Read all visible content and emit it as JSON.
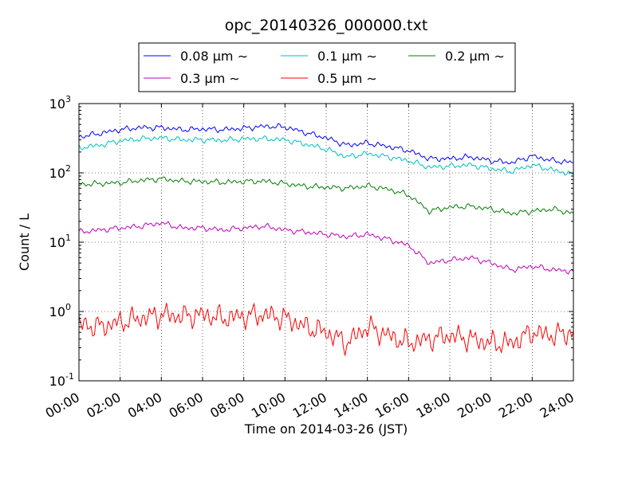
{
  "chart_data": {
    "type": "line",
    "title": "opc_20140326_000000.txt",
    "xlabel": "Time on 2014-03-26 (JST)",
    "ylabel": "Count / L",
    "yscale": "log",
    "ylim": [
      0.1,
      1000
    ],
    "xlim": [
      "00:00",
      "24:00"
    ],
    "x_tick_labels": [
      "00:00",
      "02:00",
      "04:00",
      "06:00",
      "08:00",
      "10:00",
      "12:00",
      "14:00",
      "16:00",
      "18:00",
      "20:00",
      "22:00",
      "24:00"
    ],
    "y_tick_labels": [
      {
        "base": "10",
        "exp": "-1"
      },
      {
        "base": "10",
        "exp": "0"
      },
      {
        "base": "10",
        "exp": "1"
      },
      {
        "base": "10",
        "exp": "2"
      },
      {
        "base": "10",
        "exp": "3"
      }
    ],
    "grid": true,
    "legend_position": "top-center",
    "x": [
      "00:00",
      "01:00",
      "02:00",
      "03:00",
      "04:00",
      "05:00",
      "06:00",
      "07:00",
      "08:00",
      "09:00",
      "10:00",
      "11:00",
      "12:00",
      "13:00",
      "14:00",
      "15:00",
      "16:00",
      "17:00",
      "18:00",
      "19:00",
      "20:00",
      "21:00",
      "22:00",
      "23:00",
      "24:00"
    ],
    "series": [
      {
        "name": "0.08 μm ∼",
        "color": "#0000ff",
        "values": [
          330,
          370,
          420,
          450,
          450,
          420,
          430,
          420,
          440,
          470,
          460,
          380,
          320,
          250,
          270,
          240,
          210,
          160,
          160,
          170,
          150,
          140,
          175,
          150,
          140
        ]
      },
      {
        "name": "0.1 μm ∼",
        "color": "#00bfbf",
        "values": [
          230,
          250,
          290,
          310,
          320,
          300,
          300,
          295,
          310,
          310,
          300,
          260,
          220,
          170,
          190,
          170,
          150,
          120,
          125,
          130,
          115,
          105,
          130,
          110,
          95
        ]
      },
      {
        "name": "0.2 μm ∼",
        "color": "#008000",
        "values": [
          68,
          70,
          72,
          78,
          82,
          76,
          75,
          73,
          75,
          76,
          70,
          64,
          62,
          60,
          65,
          58,
          48,
          28,
          32,
          33,
          30,
          26,
          28,
          30,
          26
        ]
      },
      {
        "name": "0.3 μm ∼",
        "color": "#bf00bf",
        "values": [
          14,
          15,
          16,
          17,
          19,
          16,
          16,
          15,
          16,
          17,
          15,
          14,
          13,
          12,
          13,
          11,
          9,
          5,
          5.5,
          6,
          5,
          4,
          4.5,
          4,
          3.8
        ]
      },
      {
        "name": "0.5 μm ∼",
        "color": "#ff0000",
        "values": [
          0.65,
          0.6,
          0.7,
          0.8,
          0.9,
          0.85,
          0.9,
          0.8,
          0.85,
          0.9,
          0.8,
          0.6,
          0.5,
          0.35,
          0.6,
          0.45,
          0.35,
          0.4,
          0.45,
          0.4,
          0.35,
          0.35,
          0.5,
          0.45,
          0.5
        ]
      }
    ]
  }
}
